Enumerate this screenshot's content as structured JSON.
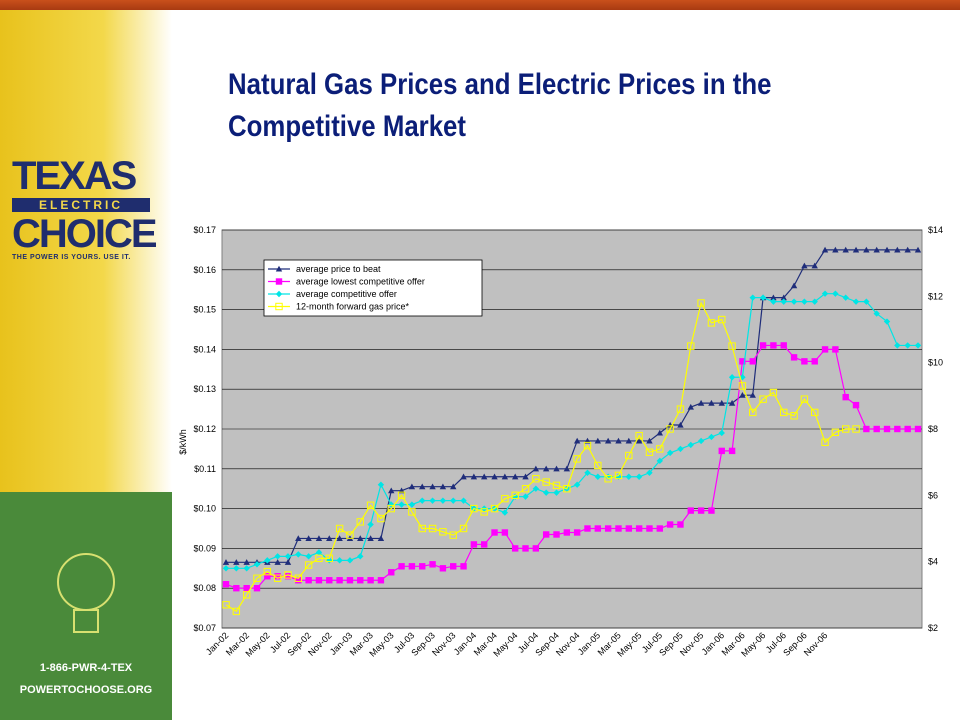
{
  "slide": {
    "title_line1": "Natural Gas Prices and Electric Prices in the",
    "title_line2": "Competitive Market",
    "phone": "1-866-PWR-4-TEX",
    "website": "POWERTOCHOOSE.ORG"
  },
  "logo": {
    "word1": "TEXAS",
    "word2": "ELECTRIC",
    "word3": "CHOICE",
    "tagline": "THE POWER IS YOURS. USE IT."
  },
  "colors": {
    "accent_red": "#c9501c",
    "title_blue": "#0b1e78",
    "plot_bg": "#c0c0c0",
    "sidebar_yellow": "#e8c21c",
    "sidebar_green": "#4a8a3a"
  },
  "chart_data": {
    "type": "line",
    "ylabel": "$/kWh",
    "ylim": [
      0.07,
      0.17
    ],
    "y2lim": [
      2,
      14
    ],
    "yticks": [
      "$0.07",
      "$0.08",
      "$0.09",
      "$0.10",
      "$0.11",
      "$0.12",
      "$0.13",
      "$0.14",
      "$0.15",
      "$0.16",
      "$0.17"
    ],
    "y2ticks": [
      "$2",
      "$4",
      "$6",
      "$8",
      "$10",
      "$12",
      "$14"
    ],
    "xticks": [
      "Jan-02",
      "Mar-02",
      "May-02",
      "Jul-02",
      "Sep-02",
      "Nov-02",
      "Jan-03",
      "Mar-03",
      "May-03",
      "Jul-03",
      "Sep-03",
      "Nov-03",
      "Jan-04",
      "Mar-04",
      "May-04",
      "Jul-04",
      "Sep-04",
      "Nov-04",
      "Jan-05",
      "Mar-05",
      "May-05",
      "Jul-05",
      "Sep-05",
      "Nov-05",
      "Jan-06",
      "Mar-06",
      "May-06",
      "Jul-06",
      "Sep-06",
      "Nov-06"
    ],
    "legend_position": "top-left",
    "grid": "horizontal",
    "series": [
      {
        "name": "average price to beat",
        "color": "#1f2d7a",
        "marker": "triangle",
        "axis": "left",
        "values": [
          0.0865,
          0.0865,
          0.0865,
          0.0865,
          0.0865,
          0.0865,
          0.0865,
          0.0925,
          0.0925,
          0.0925,
          0.0925,
          0.0925,
          0.0925,
          0.0925,
          0.0925,
          0.0925,
          0.1045,
          0.1045,
          0.1055,
          0.1055,
          0.1055,
          0.1055,
          0.1055,
          0.108,
          0.108,
          0.108,
          0.108,
          0.108,
          0.108,
          0.108,
          0.11,
          0.11,
          0.11,
          0.11,
          0.117,
          0.117,
          0.117,
          0.117,
          0.117,
          0.117,
          0.117,
          0.117,
          0.119,
          0.121,
          0.121,
          0.1255,
          0.1265,
          0.1265,
          0.1265,
          0.1265,
          0.1285,
          0.1285,
          0.153,
          0.153,
          0.153,
          0.156,
          0.161,
          0.161,
          0.165,
          0.165,
          0.165,
          0.165,
          0.165,
          0.165,
          0.165,
          0.165,
          0.165,
          0.165
        ]
      },
      {
        "name": "average lowest competitive offer",
        "color": "#ff00ff",
        "marker": "square",
        "axis": "left",
        "values": [
          0.081,
          0.08,
          0.08,
          0.08,
          0.083,
          0.083,
          0.083,
          0.082,
          0.082,
          0.082,
          0.082,
          0.082,
          0.082,
          0.082,
          0.082,
          0.082,
          0.084,
          0.0855,
          0.0855,
          0.0855,
          0.086,
          0.085,
          0.0855,
          0.0855,
          0.091,
          0.091,
          0.094,
          0.094,
          0.09,
          0.09,
          0.09,
          0.0935,
          0.0935,
          0.094,
          0.094,
          0.095,
          0.095,
          0.095,
          0.095,
          0.095,
          0.095,
          0.095,
          0.095,
          0.096,
          0.096,
          0.0995,
          0.0995,
          0.0995,
          0.1145,
          0.1145,
          0.137,
          0.137,
          0.141,
          0.141,
          0.141,
          0.138,
          0.137,
          0.137,
          0.14,
          0.14,
          0.128,
          0.126,
          0.12,
          0.12,
          0.12,
          0.12,
          0.12,
          0.12
        ]
      },
      {
        "name": "average competitive offer",
        "color": "#00e5e5",
        "marker": "diamond",
        "axis": "left",
        "values": [
          0.085,
          0.085,
          0.085,
          0.086,
          0.087,
          0.088,
          0.088,
          0.0885,
          0.088,
          0.089,
          0.087,
          0.087,
          0.087,
          0.088,
          0.096,
          0.106,
          0.101,
          0.101,
          0.101,
          0.102,
          0.102,
          0.102,
          0.102,
          0.102,
          0.1,
          0.1,
          0.1,
          0.099,
          0.103,
          0.103,
          0.105,
          0.104,
          0.104,
          0.105,
          0.106,
          0.109,
          0.108,
          0.108,
          0.108,
          0.108,
          0.108,
          0.109,
          0.112,
          0.114,
          0.115,
          0.116,
          0.117,
          0.118,
          0.119,
          0.133,
          0.133,
          0.153,
          0.153,
          0.152,
          0.152,
          0.152,
          0.152,
          0.152,
          0.154,
          0.154,
          0.153,
          0.152,
          0.152,
          0.149,
          0.147,
          0.141,
          0.141,
          0.141
        ]
      },
      {
        "name": "12-month forward gas price*",
        "color": "#ffff00",
        "marker": "open-square",
        "axis": "right",
        "values": [
          2.7,
          2.5,
          3.0,
          3.5,
          3.7,
          3.5,
          3.6,
          3.5,
          3.9,
          4.1,
          4.1,
          5.0,
          4.8,
          5.2,
          5.7,
          5.3,
          5.6,
          6.0,
          5.5,
          5.0,
          5.0,
          4.9,
          4.8,
          5.0,
          5.6,
          5.5,
          5.6,
          5.9,
          6.0,
          6.2,
          6.5,
          6.4,
          6.3,
          6.2,
          7.1,
          7.5,
          6.9,
          6.5,
          6.6,
          7.2,
          7.8,
          7.3,
          7.4,
          8.0,
          8.6,
          10.5,
          11.8,
          11.2,
          11.3,
          10.5,
          9.3,
          8.5,
          8.9,
          9.1,
          8.5,
          8.4,
          8.9,
          8.5,
          7.6,
          7.9,
          8.0,
          8.0
        ]
      }
    ]
  }
}
